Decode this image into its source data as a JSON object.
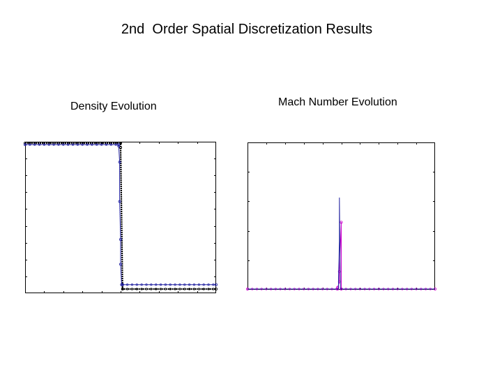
{
  "page": {
    "title": "2nd  Order Spatial Discretization Results"
  },
  "chart_data": [
    {
      "type": "line",
      "title": "Density Evolution",
      "xlabel": "",
      "ylabel": "",
      "grid": false,
      "legend": "none",
      "xlim": [
        0,
        1
      ],
      "ylim": [
        0,
        1
      ],
      "axis_numbers_shown": false,
      "series": [
        {
          "color": "#000000",
          "style": "dashed with markers",
          "x": [
            0.0,
            0.5,
            0.5,
            0.51,
            0.51,
            1.0
          ],
          "y": [
            1.0,
            1.0,
            0.97,
            0.03,
            0.0,
            0.0
          ]
        },
        {
          "color": "#1f1f9f",
          "style": "solid with circle markers",
          "x": [
            0.0,
            0.49,
            0.49,
            0.495,
            0.495,
            0.5,
            0.5,
            0.505,
            0.51,
            1.0
          ],
          "y": [
            0.99,
            0.99,
            0.98,
            0.87,
            0.6,
            0.34,
            0.17,
            0.03,
            0.03,
            0.03
          ]
        }
      ]
    },
    {
      "type": "line",
      "title": "Mach Number Evolution",
      "xlabel": "",
      "ylabel": "",
      "grid": false,
      "legend": "none",
      "xlim": [
        0,
        1
      ],
      "ylim": [
        0,
        1
      ],
      "axis_numbers_shown": false,
      "series": [
        {
          "color": "#cc00cc",
          "style": "solid with markers",
          "x": [
            0.0,
            0.48,
            0.48,
            0.49,
            0.49,
            0.5,
            0.5,
            1.0
          ],
          "y": [
            0.0,
            0.0,
            0.01,
            0.05,
            0.12,
            0.46,
            0.0,
            0.0
          ]
        },
        {
          "color": "#1f1f9f",
          "style": "solid",
          "x": [
            0.0,
            0.485,
            0.485,
            0.49,
            0.49,
            0.495,
            0.495,
            1.0
          ],
          "y": [
            0.0,
            0.0,
            0.08,
            0.33,
            0.63,
            0.0,
            0.0,
            0.0
          ]
        }
      ]
    }
  ]
}
